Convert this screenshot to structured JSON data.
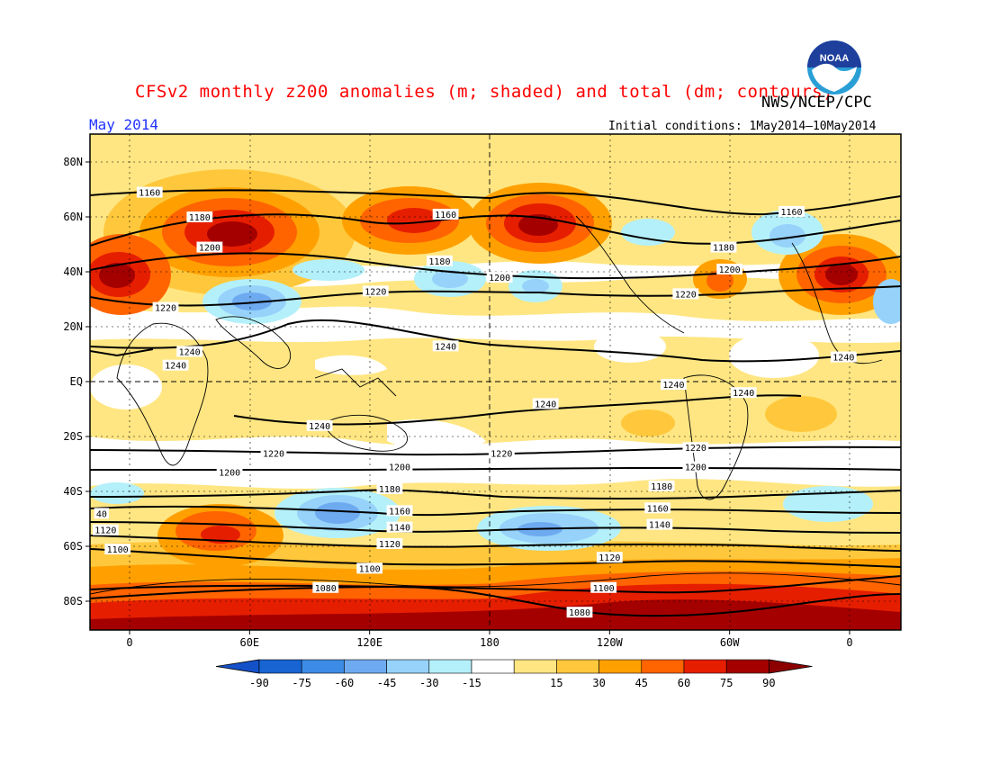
{
  "header": {
    "title": "CFSv2 monthly z200 anomalies (m; shaded) and total (dm; contours)",
    "agency": "NWS/NCEP/CPC",
    "month": "May 2014",
    "initial_conditions": "Initial conditions: 1May2014—10May2014"
  },
  "logo": {
    "name": "noaa-logo",
    "text": "NOAA"
  },
  "axes": {
    "lat_labels": [
      "80N",
      "60N",
      "40N",
      "20N",
      "EQ",
      "20S",
      "40S",
      "60S",
      "80S"
    ],
    "lon_labels": [
      "0",
      "60E",
      "120E",
      "180",
      "120W",
      "60W",
      "0"
    ]
  },
  "colorbar": {
    "labels": [
      "-90",
      "-75",
      "-60",
      "-45",
      "-30",
      "-15",
      "15",
      "30",
      "45",
      "60",
      "75",
      "90"
    ],
    "colors": [
      "#1764d2",
      "#3c8ce6",
      "#6eaaf0",
      "#96d2fa",
      "#b4f0fa",
      "#ffffff",
      "#ffe682",
      "#ffc83c",
      "#ffa000",
      "#ff6400",
      "#e61e00",
      "#a50000"
    ],
    "end_low": "#1450c8",
    "end_high": "#8c0000"
  },
  "contour_labels": [
    {
      "lat": 69,
      "lon": 10,
      "text": "1160"
    },
    {
      "lat": 60,
      "lon": 35,
      "text": "1180"
    },
    {
      "lat": 49,
      "lon": 40,
      "text": "1200"
    },
    {
      "lat": 27,
      "lon": 18,
      "text": "1220"
    },
    {
      "lat": 11,
      "lon": 30,
      "text": "1240"
    },
    {
      "lat": 6,
      "lon": 23,
      "text": "1240"
    },
    {
      "lat": 61,
      "lon": 158,
      "text": "1160"
    },
    {
      "lat": 44,
      "lon": 155,
      "text": "1180"
    },
    {
      "lat": 38,
      "lon": 185,
      "text": "1200"
    },
    {
      "lat": 33,
      "lon": 123,
      "text": "1220"
    },
    {
      "lat": 13,
      "lon": 158,
      "text": "1240"
    },
    {
      "lat": 62,
      "lon": 331,
      "text": "1160"
    },
    {
      "lat": 49,
      "lon": 297,
      "text": "1180"
    },
    {
      "lat": 41,
      "lon": 300,
      "text": "1200"
    },
    {
      "lat": 32,
      "lon": 278,
      "text": "1220"
    },
    {
      "lat": 9,
      "lon": 357,
      "text": "1240"
    },
    {
      "lat": -1,
      "lon": 272,
      "text": "1240"
    },
    {
      "lat": -4,
      "lon": 307,
      "text": "1240"
    },
    {
      "lat": -8,
      "lon": 208,
      "text": "1240"
    },
    {
      "lat": -16,
      "lon": 95,
      "text": "1240"
    },
    {
      "lat": -26,
      "lon": 72,
      "text": "1220"
    },
    {
      "lat": -26,
      "lon": 186,
      "text": "1220"
    },
    {
      "lat": -24,
      "lon": 283,
      "text": "1220"
    },
    {
      "lat": -31,
      "lon": 283,
      "text": "1200"
    },
    {
      "lat": -33,
      "lon": 50,
      "text": "1200"
    },
    {
      "lat": -31,
      "lon": 135,
      "text": "1200"
    },
    {
      "lat": -39,
      "lon": 130,
      "text": "1180"
    },
    {
      "lat": -38,
      "lon": 266,
      "text": "1180"
    },
    {
      "lat": -47,
      "lon": 135,
      "text": "1160"
    },
    {
      "lat": -46,
      "lon": 264,
      "text": "1160"
    },
    {
      "lat": -53,
      "lon": 135,
      "text": "1140"
    },
    {
      "lat": -52,
      "lon": 265,
      "text": "1140"
    },
    {
      "lat": -59,
      "lon": 130,
      "text": "1120"
    },
    {
      "lat": -64,
      "lon": 240,
      "text": "1120"
    },
    {
      "lat": -48,
      "lon": -14,
      "text": "40"
    },
    {
      "lat": -54,
      "lon": -12,
      "text": "1120"
    },
    {
      "lat": -61,
      "lon": -6,
      "text": "1100"
    },
    {
      "lat": -68,
      "lon": 120,
      "text": "1100"
    },
    {
      "lat": -75,
      "lon": 237,
      "text": "1100"
    },
    {
      "lat": -75,
      "lon": 98,
      "text": "1080"
    },
    {
      "lat": -84,
      "lon": 225,
      "text": "1080"
    }
  ]
}
